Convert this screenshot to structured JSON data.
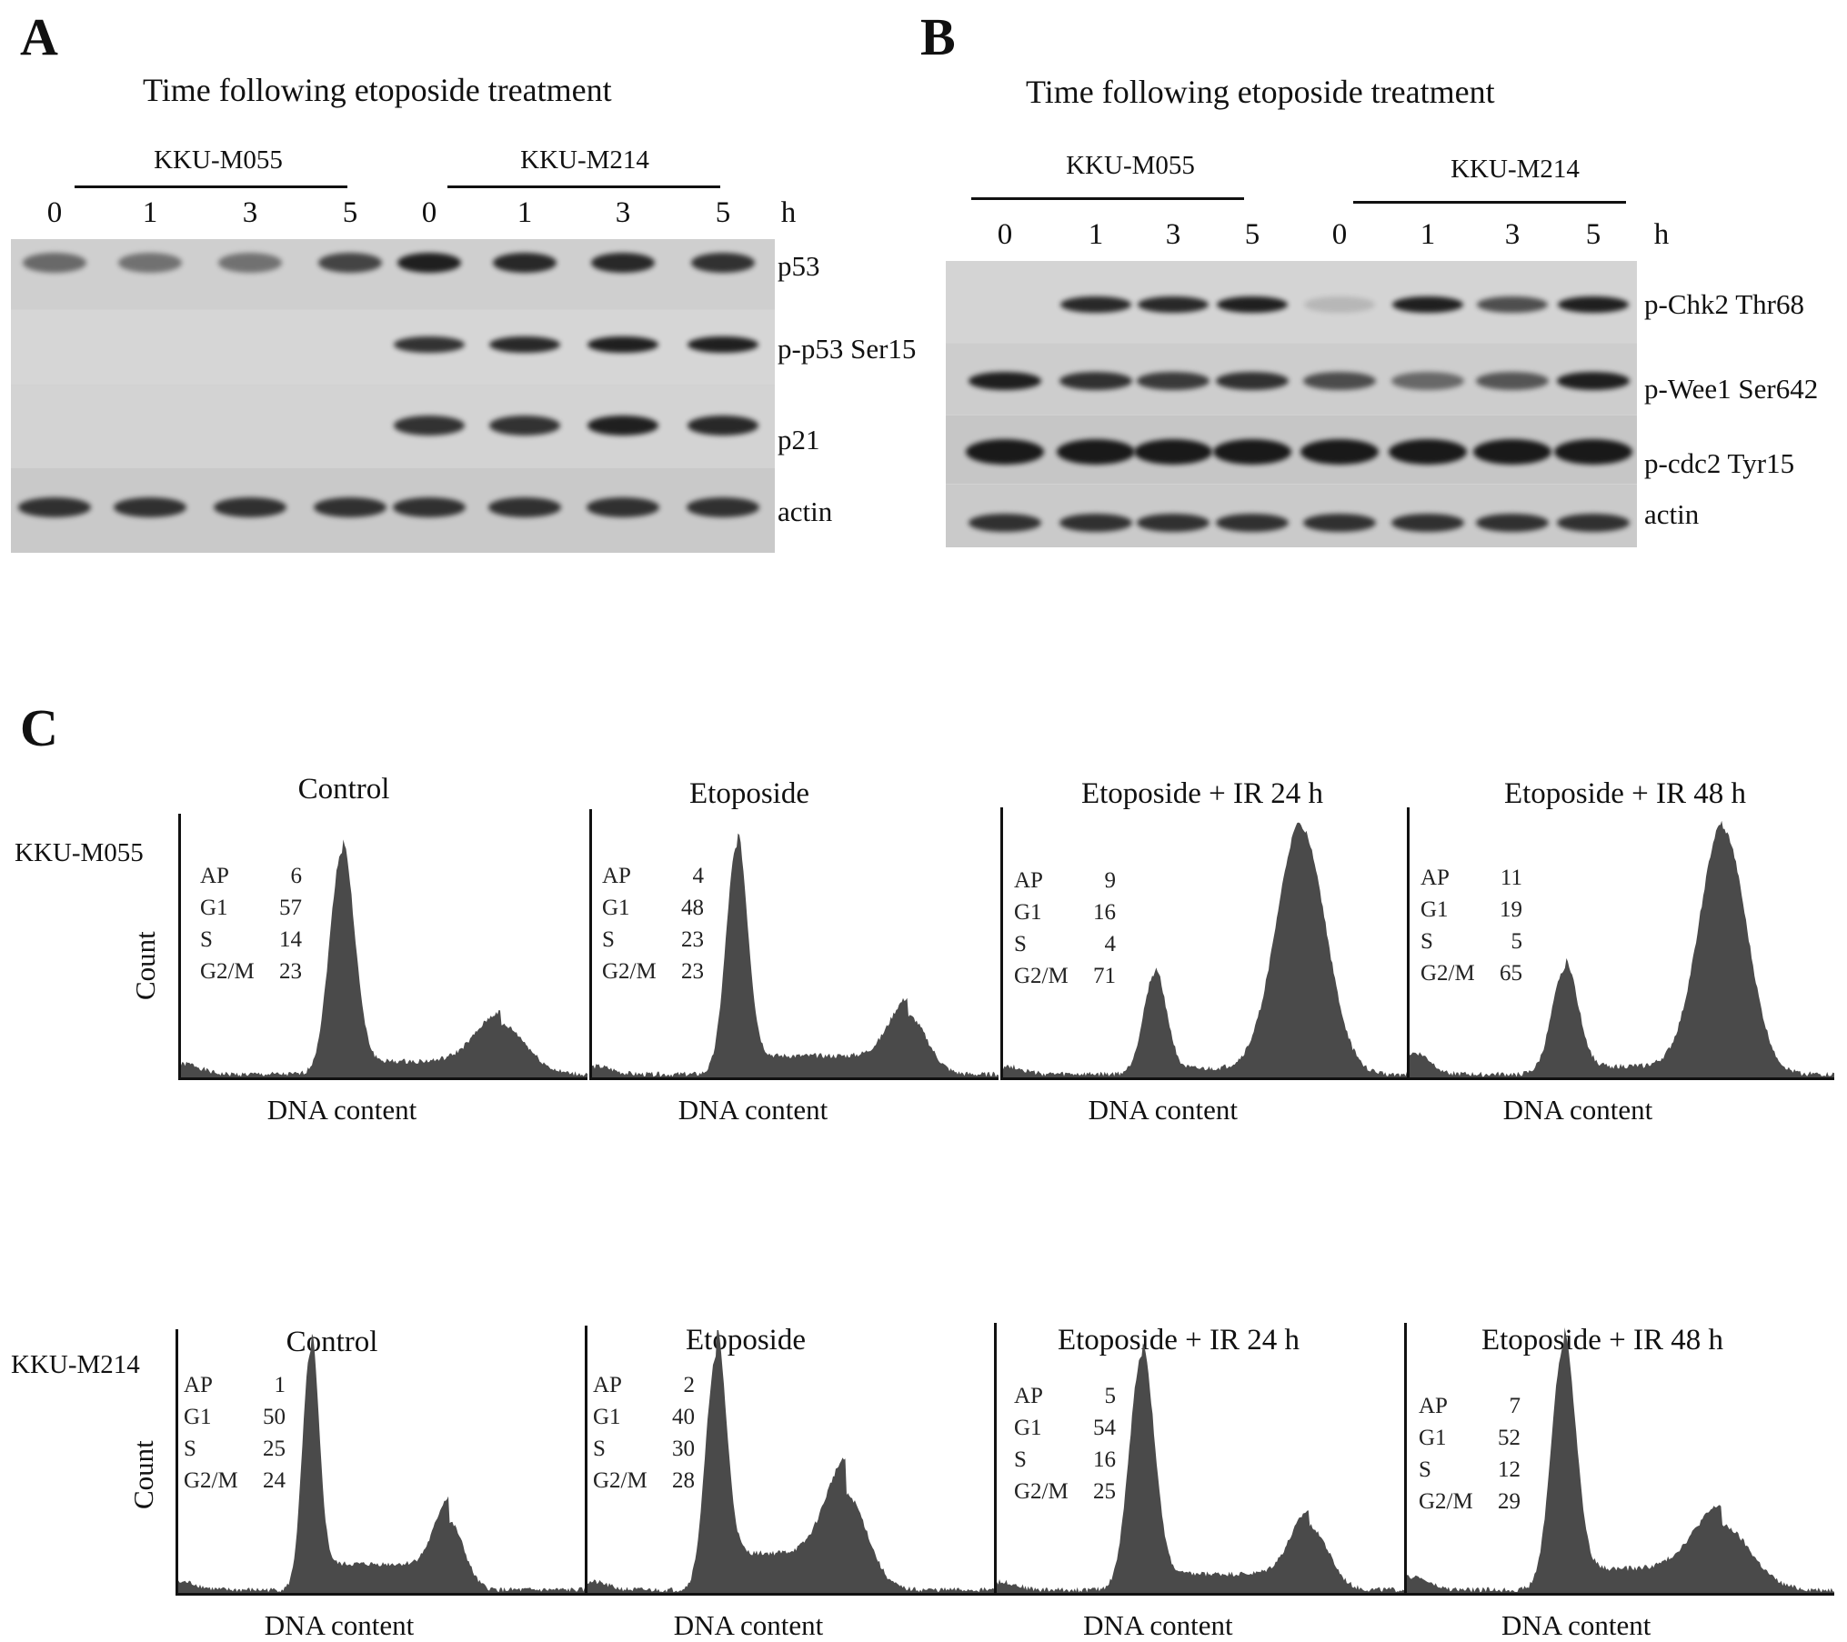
{
  "panelA": {
    "letter": "A",
    "title": "Time following etoposide treatment",
    "cellLines": [
      "KKU-M055",
      "KKU-M214"
    ],
    "times": [
      "0",
      "1",
      "3",
      "5",
      "0",
      "1",
      "3",
      "5"
    ],
    "timeUnit": "h",
    "proteins": [
      "p53",
      "p-p53 Ser15",
      "p21",
      "actin"
    ]
  },
  "panelB": {
    "letter": "B",
    "title": "Time following etoposide treatment",
    "cellLines": [
      "KKU-M055",
      "KKU-M214"
    ],
    "times": [
      "0",
      "1",
      "3",
      "5",
      "0",
      "1",
      "3",
      "5"
    ],
    "timeUnit": "h",
    "proteins": [
      "p-Chk2 Thr68",
      "p-Wee1 Ser642",
      "p-cdc2 Tyr15",
      "actin"
    ]
  },
  "panelC": {
    "letter": "C",
    "xlabel": "DNA content",
    "ylabel": "Count",
    "statLabels": [
      "AP",
      "G1",
      "S",
      "G2/M"
    ],
    "rows": [
      {
        "cellLine": "KKU-M055",
        "plots": [
          {
            "title": "Control",
            "stats": [
              "6",
              "57",
              "14",
              "23"
            ]
          },
          {
            "title": "Etoposide",
            "stats": [
              "4",
              "48",
              "23",
              "23"
            ]
          },
          {
            "title": "Etoposide + IR 24 h",
            "stats": [
              "9",
              "16",
              "4",
              "71"
            ]
          },
          {
            "title": "Etoposide + IR 48 h",
            "stats": [
              "11",
              "19",
              "5",
              "65"
            ]
          }
        ]
      },
      {
        "cellLine": "KKU-M214",
        "plots": [
          {
            "title": "Control",
            "stats": [
              "1",
              "50",
              "25",
              "24"
            ]
          },
          {
            "title": "Etoposide",
            "stats": [
              "2",
              "40",
              "30",
              "28"
            ]
          },
          {
            "title": "Etoposide + IR 24 h",
            "stats": [
              "5",
              "54",
              "16",
              "25"
            ]
          },
          {
            "title": "Etoposide + IR 48 h",
            "stats": [
              "7",
              "52",
              "12",
              "29"
            ]
          }
        ]
      }
    ]
  }
}
